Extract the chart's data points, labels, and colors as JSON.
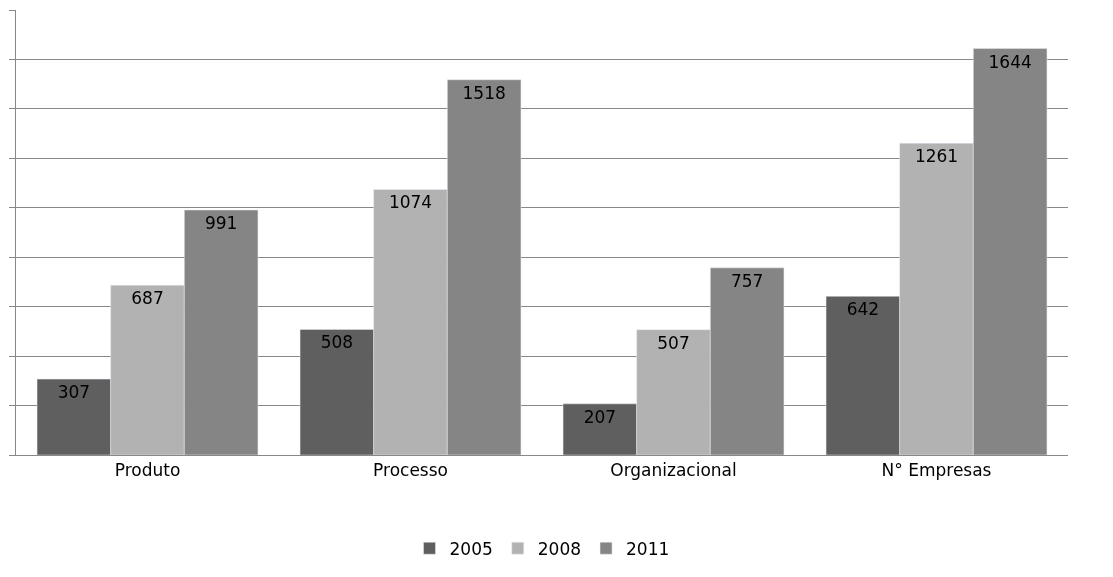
{
  "chart_data": {
    "type": "bar",
    "categories": [
      "Produto",
      "Processo",
      "Organizacional",
      "N° Empresas"
    ],
    "series": [
      {
        "name": "2005",
        "color": "#5f5f5f",
        "values": [
          307,
          508,
          207,
          642
        ]
      },
      {
        "name": "2008",
        "color": "#b2b2b2",
        "values": [
          687,
          1074,
          507,
          1261
        ]
      },
      {
        "name": "2011",
        "color": "#858585",
        "values": [
          991,
          1518,
          757,
          1644
        ]
      }
    ],
    "ylim": [
      0,
      1800
    ],
    "yticks": [
      {
        "value": 0,
        "label": null
      },
      {
        "value": 200,
        "label": null
      },
      {
        "value": 400,
        "label": null
      },
      {
        "value": 600,
        "label": null
      },
      {
        "value": 800,
        "label": null
      },
      {
        "value": 1000,
        "label": null
      },
      {
        "value": 1200,
        "label": null
      },
      {
        "value": 1400,
        "label": null
      },
      {
        "value": 1600,
        "label": null
      },
      {
        "value": 1800,
        "label": null
      }
    ],
    "tick_labels": "x",
    "grid": "y",
    "legend": "bottom",
    "data_labels": true
  }
}
